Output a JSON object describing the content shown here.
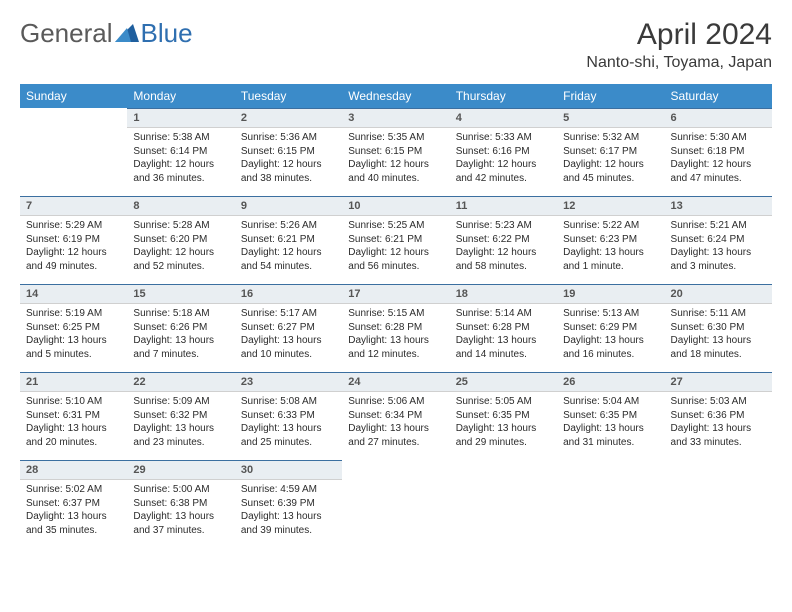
{
  "logo": {
    "text1": "General",
    "text2": "Blue"
  },
  "title": "April 2024",
  "location": "Nanto-shi, Toyama, Japan",
  "colors": {
    "header_bg": "#3b8bc9",
    "header_fg": "#ffffff",
    "daynum_bg": "#e9eef2",
    "rule": "#3b6fa0",
    "text": "#2b2b2b",
    "logo_gray": "#5a5a5a",
    "logo_blue": "#2f6fb0"
  },
  "day_headers": [
    "Sunday",
    "Monday",
    "Tuesday",
    "Wednesday",
    "Thursday",
    "Friday",
    "Saturday"
  ],
  "weeks": [
    [
      null,
      {
        "n": "1",
        "sr": "Sunrise: 5:38 AM",
        "ss": "Sunset: 6:14 PM",
        "d1": "Daylight: 12 hours",
        "d2": "and 36 minutes."
      },
      {
        "n": "2",
        "sr": "Sunrise: 5:36 AM",
        "ss": "Sunset: 6:15 PM",
        "d1": "Daylight: 12 hours",
        "d2": "and 38 minutes."
      },
      {
        "n": "3",
        "sr": "Sunrise: 5:35 AM",
        "ss": "Sunset: 6:15 PM",
        "d1": "Daylight: 12 hours",
        "d2": "and 40 minutes."
      },
      {
        "n": "4",
        "sr": "Sunrise: 5:33 AM",
        "ss": "Sunset: 6:16 PM",
        "d1": "Daylight: 12 hours",
        "d2": "and 42 minutes."
      },
      {
        "n": "5",
        "sr": "Sunrise: 5:32 AM",
        "ss": "Sunset: 6:17 PM",
        "d1": "Daylight: 12 hours",
        "d2": "and 45 minutes."
      },
      {
        "n": "6",
        "sr": "Sunrise: 5:30 AM",
        "ss": "Sunset: 6:18 PM",
        "d1": "Daylight: 12 hours",
        "d2": "and 47 minutes."
      }
    ],
    [
      {
        "n": "7",
        "sr": "Sunrise: 5:29 AM",
        "ss": "Sunset: 6:19 PM",
        "d1": "Daylight: 12 hours",
        "d2": "and 49 minutes."
      },
      {
        "n": "8",
        "sr": "Sunrise: 5:28 AM",
        "ss": "Sunset: 6:20 PM",
        "d1": "Daylight: 12 hours",
        "d2": "and 52 minutes."
      },
      {
        "n": "9",
        "sr": "Sunrise: 5:26 AM",
        "ss": "Sunset: 6:21 PM",
        "d1": "Daylight: 12 hours",
        "d2": "and 54 minutes."
      },
      {
        "n": "10",
        "sr": "Sunrise: 5:25 AM",
        "ss": "Sunset: 6:21 PM",
        "d1": "Daylight: 12 hours",
        "d2": "and 56 minutes."
      },
      {
        "n": "11",
        "sr": "Sunrise: 5:23 AM",
        "ss": "Sunset: 6:22 PM",
        "d1": "Daylight: 12 hours",
        "d2": "and 58 minutes."
      },
      {
        "n": "12",
        "sr": "Sunrise: 5:22 AM",
        "ss": "Sunset: 6:23 PM",
        "d1": "Daylight: 13 hours",
        "d2": "and 1 minute."
      },
      {
        "n": "13",
        "sr": "Sunrise: 5:21 AM",
        "ss": "Sunset: 6:24 PM",
        "d1": "Daylight: 13 hours",
        "d2": "and 3 minutes."
      }
    ],
    [
      {
        "n": "14",
        "sr": "Sunrise: 5:19 AM",
        "ss": "Sunset: 6:25 PM",
        "d1": "Daylight: 13 hours",
        "d2": "and 5 minutes."
      },
      {
        "n": "15",
        "sr": "Sunrise: 5:18 AM",
        "ss": "Sunset: 6:26 PM",
        "d1": "Daylight: 13 hours",
        "d2": "and 7 minutes."
      },
      {
        "n": "16",
        "sr": "Sunrise: 5:17 AM",
        "ss": "Sunset: 6:27 PM",
        "d1": "Daylight: 13 hours",
        "d2": "and 10 minutes."
      },
      {
        "n": "17",
        "sr": "Sunrise: 5:15 AM",
        "ss": "Sunset: 6:28 PM",
        "d1": "Daylight: 13 hours",
        "d2": "and 12 minutes."
      },
      {
        "n": "18",
        "sr": "Sunrise: 5:14 AM",
        "ss": "Sunset: 6:28 PM",
        "d1": "Daylight: 13 hours",
        "d2": "and 14 minutes."
      },
      {
        "n": "19",
        "sr": "Sunrise: 5:13 AM",
        "ss": "Sunset: 6:29 PM",
        "d1": "Daylight: 13 hours",
        "d2": "and 16 minutes."
      },
      {
        "n": "20",
        "sr": "Sunrise: 5:11 AM",
        "ss": "Sunset: 6:30 PM",
        "d1": "Daylight: 13 hours",
        "d2": "and 18 minutes."
      }
    ],
    [
      {
        "n": "21",
        "sr": "Sunrise: 5:10 AM",
        "ss": "Sunset: 6:31 PM",
        "d1": "Daylight: 13 hours",
        "d2": "and 20 minutes."
      },
      {
        "n": "22",
        "sr": "Sunrise: 5:09 AM",
        "ss": "Sunset: 6:32 PM",
        "d1": "Daylight: 13 hours",
        "d2": "and 23 minutes."
      },
      {
        "n": "23",
        "sr": "Sunrise: 5:08 AM",
        "ss": "Sunset: 6:33 PM",
        "d1": "Daylight: 13 hours",
        "d2": "and 25 minutes."
      },
      {
        "n": "24",
        "sr": "Sunrise: 5:06 AM",
        "ss": "Sunset: 6:34 PM",
        "d1": "Daylight: 13 hours",
        "d2": "and 27 minutes."
      },
      {
        "n": "25",
        "sr": "Sunrise: 5:05 AM",
        "ss": "Sunset: 6:35 PM",
        "d1": "Daylight: 13 hours",
        "d2": "and 29 minutes."
      },
      {
        "n": "26",
        "sr": "Sunrise: 5:04 AM",
        "ss": "Sunset: 6:35 PM",
        "d1": "Daylight: 13 hours",
        "d2": "and 31 minutes."
      },
      {
        "n": "27",
        "sr": "Sunrise: 5:03 AM",
        "ss": "Sunset: 6:36 PM",
        "d1": "Daylight: 13 hours",
        "d2": "and 33 minutes."
      }
    ],
    [
      {
        "n": "28",
        "sr": "Sunrise: 5:02 AM",
        "ss": "Sunset: 6:37 PM",
        "d1": "Daylight: 13 hours",
        "d2": "and 35 minutes."
      },
      {
        "n": "29",
        "sr": "Sunrise: 5:00 AM",
        "ss": "Sunset: 6:38 PM",
        "d1": "Daylight: 13 hours",
        "d2": "and 37 minutes."
      },
      {
        "n": "30",
        "sr": "Sunrise: 4:59 AM",
        "ss": "Sunset: 6:39 PM",
        "d1": "Daylight: 13 hours",
        "d2": "and 39 minutes."
      },
      null,
      null,
      null,
      null
    ]
  ]
}
